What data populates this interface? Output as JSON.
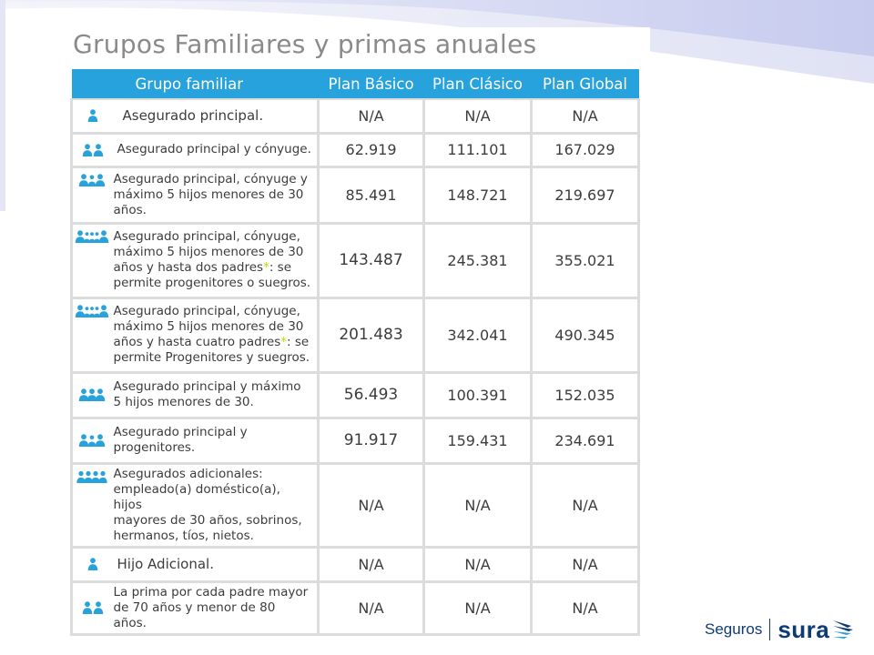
{
  "title": "Grupos Familiares y primas anuales",
  "table": {
    "headers": [
      "Grupo familiar",
      "Plan Básico",
      "Plan Clásico",
      "Plan Global"
    ],
    "rows": [
      {
        "icon": "person-icon",
        "desc": [
          "Asegurado principal."
        ],
        "basico": "N/A",
        "clasico": "N/A",
        "global": "N/A"
      },
      {
        "icon": "couple-icon",
        "desc": [
          "Asegurado principal y cónyuge."
        ],
        "basico": "62.919",
        "clasico": "111.101",
        "global": "167.029"
      },
      {
        "icon": "family-icon",
        "desc": [
          "Asegurado principal, cónyuge y",
          "máximo 5 hijos menores de 30",
          "años."
        ],
        "basico": "85.491",
        "clasico": "148.721",
        "global": "219.697"
      },
      {
        "icon": "extended-family-icon",
        "desc": [
          "Asegurado principal, cónyuge,",
          "máximo 5 hijos menores de 30",
          "años  y hasta dos padres*: se",
          "permite progenitores o suegros."
        ],
        "basico": "143.487",
        "clasico": "245.381",
        "global": "355.021"
      },
      {
        "icon": "extended-family-icon",
        "desc": [
          "Asegurado principal, cónyuge,",
          "máximo 5 hijos menores de 30",
          "años y hasta cuatro padres*: se",
          "permite Progenitores y suegros."
        ],
        "basico": "201.483",
        "clasico": "342.041",
        "global": "490.345"
      },
      {
        "icon": "group-icon",
        "desc": [
          "Asegurado principal y máximo",
          "5 hijos menores de 30."
        ],
        "basico": "56.493",
        "clasico": "100.391",
        "global": "152.035"
      },
      {
        "icon": "family-icon",
        "desc": [
          "Asegurado principal y",
          "progenitores."
        ],
        "basico": "91.917",
        "clasico": "159.431",
        "global": "234.691"
      },
      {
        "icon": "people-row-icon",
        "desc": [
          "Asegurados adicionales:",
          "empleado(a) doméstico(a), hijos",
          "mayores de 30 años, sobrinos,",
          "hermanos, tíos, nietos."
        ],
        "basico": "N/A",
        "clasico": "N/A",
        "global": "N/A"
      },
      {
        "icon": "person-icon",
        "desc": [
          "Hijo Adicional."
        ],
        "basico": "N/A",
        "clasico": "N/A",
        "global": "N/A"
      },
      {
        "icon": "couple-icon",
        "desc": [
          "La prima por cada padre mayor",
          "de 70 años y  menor de 80 años."
        ],
        "basico": "N/A",
        "clasico": "N/A",
        "global": "N/A"
      }
    ]
  },
  "brand": {
    "seguros": "Seguros",
    "sura": "sura"
  },
  "colors": {
    "header_bg": "#27a2dc",
    "icon": "#27a2dc",
    "title": "#8a8a8a",
    "border": "#dcdcdc",
    "asterisk": "#c4d600",
    "brand": "#0d3b78"
  }
}
